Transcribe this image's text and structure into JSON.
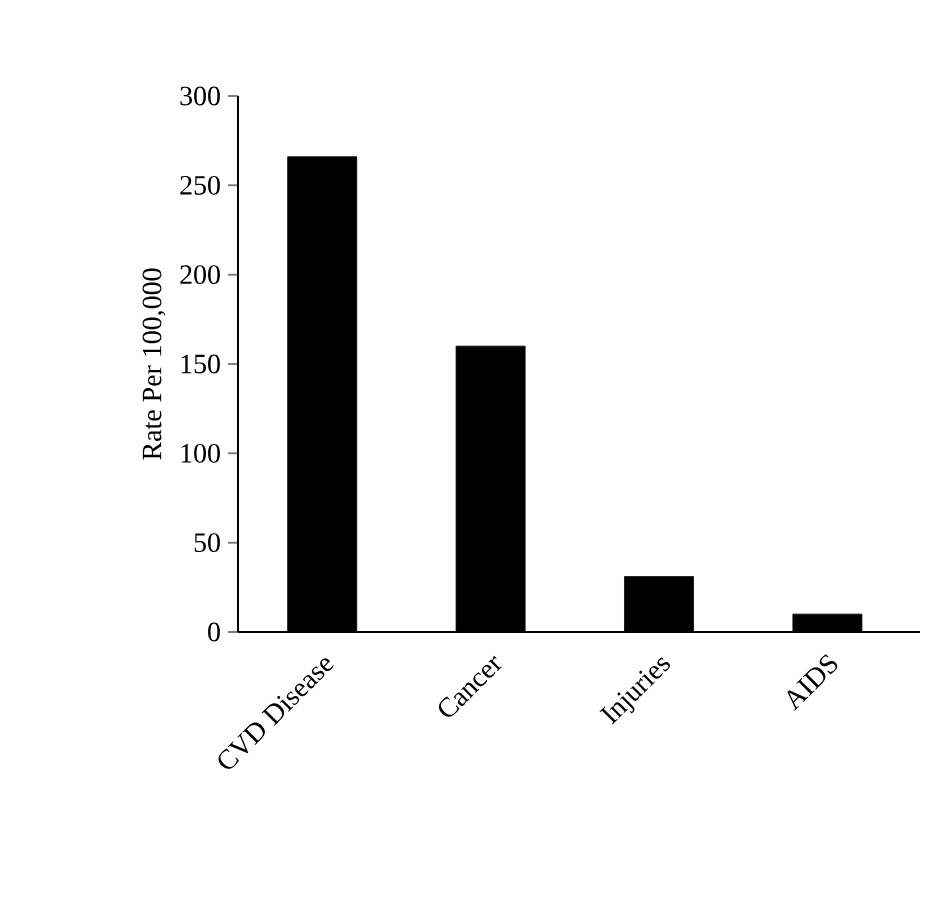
{
  "chart_data": {
    "type": "bar",
    "ylabel": "Rate Per 100,000",
    "categories": [
      "CVD Disease",
      "Cancer",
      "Injuries",
      "AIDS"
    ],
    "values": [
      266,
      160,
      31,
      10
    ],
    "color": "#000000",
    "ylim": [
      0,
      300
    ],
    "yticks": [
      0,
      50,
      100,
      150,
      200,
      250,
      300
    ]
  }
}
